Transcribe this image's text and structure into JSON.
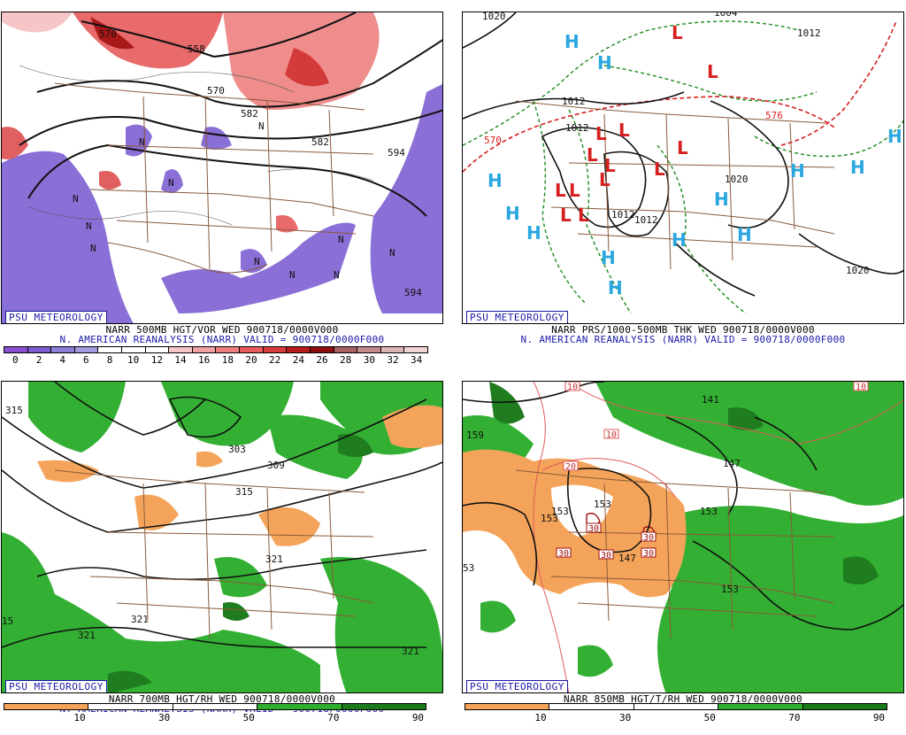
{
  "panels": [
    {
      "logo": "PSU METEOROLOGY",
      "title": "NARR 500MB HGT/VOR WED 900718/0000V000",
      "subtitle": "N. AMERICAN REANALYSIS (NARR) VALID = 900718/0000F000",
      "scale": [
        "0",
        "2",
        "4",
        "6",
        "8",
        "10",
        "12",
        "14",
        "16",
        "18",
        "20",
        "22",
        "24",
        "26",
        "28",
        "30",
        "32",
        "34"
      ],
      "scale_colors": [
        "#8a4fd0",
        "#7a5ccc",
        "#8a7fd6",
        "#a39be0",
        "#ffffff",
        "#ffffff",
        "#ffffff",
        "#f6c6c6",
        "#f2a0a0",
        "#ee7f7f",
        "#e85c5c",
        "#d73a3a",
        "#b81c1c",
        "#8c0f0f",
        "#a86060",
        "#c28a8a",
        "#dcb6b6",
        "#f0d4d4"
      ],
      "contour_labels": [
        "558",
        "570",
        "582",
        "582",
        "594",
        "594",
        "570"
      ],
      "vort_markers": [
        "N",
        "N",
        "N",
        "N",
        "N",
        "N",
        "N",
        "N",
        "N",
        "N",
        "N"
      ]
    },
    {
      "logo": "PSU METEOROLOGY",
      "title": "NARR PRS/1000-500MB THK WED 900718/0000V000",
      "subtitle": "N. AMERICAN REANALYSIS (NARR) VALID = 900718/0000F000",
      "contour_labels": [
        "1020",
        "1004",
        "1012",
        "1012",
        "1012",
        "1012",
        "1012",
        "1020",
        "1020",
        "570",
        "576"
      ],
      "highs": [
        "H",
        "H",
        "H",
        "H",
        "H",
        "H",
        "H",
        "H",
        "H",
        "H",
        "H",
        "H",
        "H"
      ],
      "lows": [
        "L",
        "L",
        "L",
        "L",
        "L",
        "L",
        "L",
        "L",
        "L",
        "L",
        "L",
        "L",
        "L"
      ]
    },
    {
      "logo": "PSU METEOROLOGY",
      "title": "NARR 700MB HGT/RH WED 900718/0000V000",
      "subtitle": "N. AMERICAN REANALYSIS (NARR) VALID = 900718/0000F000",
      "scale": [
        "10",
        "30",
        "50",
        "70",
        "90"
      ],
      "scale_colors": [
        "#f4a45a",
        "#ffffff",
        "#ffffff",
        "#2fae2f",
        "#1b7a1b"
      ],
      "contour_labels": [
        "315",
        "303",
        "309",
        "315",
        "321",
        "321",
        "321",
        "321",
        "15"
      ]
    },
    {
      "logo": "PSU METEOROLOGY",
      "title": "NARR 850MB HGT/T/RH WED 900718/0000V000",
      "subtitle": "",
      "scale": [
        "10",
        "30",
        "50",
        "70",
        "90"
      ],
      "scale_colors": [
        "#f4a45a",
        "#ffffff",
        "#ffffff",
        "#2fae2f",
        "#1b7a1b"
      ],
      "contour_labels": [
        "141",
        "147",
        "153",
        "153",
        "153",
        "153",
        "159",
        "153",
        "53",
        "147"
      ],
      "temp_labels": [
        "10",
        "10",
        "10",
        "20",
        "30",
        "30",
        "30",
        "30",
        "30"
      ]
    }
  ]
}
